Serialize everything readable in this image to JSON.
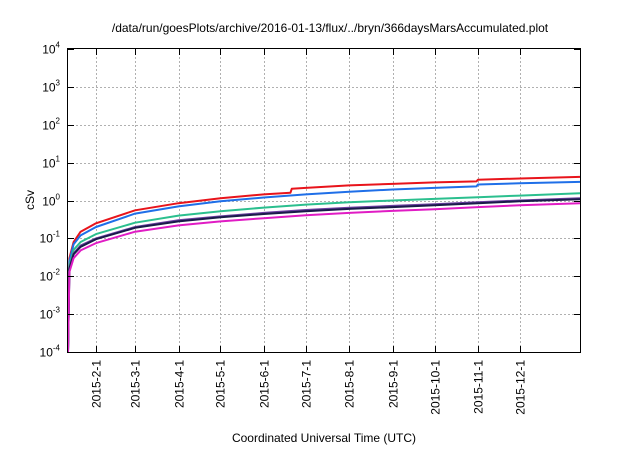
{
  "chart_data": {
    "type": "line",
    "title": "/data/run/goesPlots/archive/2016-01-13/flux/../bryn/366daysMarsAccumulated.plot",
    "xlabel": "Coordinated Universal Time (UTC)",
    "ylabel": "cSv",
    "y_scale": "log",
    "ylim": [
      0.0001,
      10000
    ],
    "xlim": [
      "2015-01-12",
      "2016-01-13"
    ],
    "grid": true,
    "legend": "none",
    "y_ticks": [
      {
        "value": 0.0001,
        "base": "10",
        "exp": "-4"
      },
      {
        "value": 0.001,
        "base": "10",
        "exp": "-3"
      },
      {
        "value": 0.01,
        "base": "10",
        "exp": "-2"
      },
      {
        "value": 0.1,
        "base": "10",
        "exp": "-1"
      },
      {
        "value": 1,
        "base": "10",
        "exp": "0"
      },
      {
        "value": 10,
        "base": "10",
        "exp": "1"
      },
      {
        "value": 100,
        "base": "10",
        "exp": "2"
      },
      {
        "value": 1000,
        "base": "10",
        "exp": "3"
      },
      {
        "value": 10000,
        "base": "10",
        "exp": "4"
      }
    ],
    "x_ticks": [
      {
        "date": "2015-02-01",
        "label": "2015-2-1"
      },
      {
        "date": "2015-03-01",
        "label": "2015-3-1"
      },
      {
        "date": "2015-04-01",
        "label": "2015-4-1"
      },
      {
        "date": "2015-05-01",
        "label": "2015-5-1"
      },
      {
        "date": "2015-06-01",
        "label": "2015-6-1"
      },
      {
        "date": "2015-07-01",
        "label": "2015-7-1"
      },
      {
        "date": "2015-08-01",
        "label": "2015-8-1"
      },
      {
        "date": "2015-09-01",
        "label": "2015-9-1"
      },
      {
        "date": "2015-10-01",
        "label": "2015-10-1"
      },
      {
        "date": "2015-11-01",
        "label": "2015-11-1"
      },
      {
        "date": "2015-12-01",
        "label": "2015-12-1"
      }
    ],
    "series": [
      {
        "color": "#e8141b",
        "points": [
          [
            "2015-01-12",
            0.0001
          ],
          [
            "2015-01-13",
            0.03
          ],
          [
            "2015-01-16",
            0.08
          ],
          [
            "2015-01-21",
            0.15
          ],
          [
            "2015-02-01",
            0.25
          ],
          [
            "2015-03-01",
            0.55
          ],
          [
            "2015-04-01",
            0.85
          ],
          [
            "2015-05-01",
            1.15
          ],
          [
            "2015-06-01",
            1.45
          ],
          [
            "2015-06-20",
            1.6
          ],
          [
            "2015-06-21",
            2.05
          ],
          [
            "2015-07-01",
            2.15
          ],
          [
            "2015-08-01",
            2.5
          ],
          [
            "2015-09-01",
            2.75
          ],
          [
            "2015-10-01",
            3.0
          ],
          [
            "2015-10-31",
            3.2
          ],
          [
            "2015-11-01",
            3.55
          ],
          [
            "2015-12-01",
            3.8
          ],
          [
            "2016-01-13",
            4.2
          ]
        ]
      },
      {
        "color": "#1f6fe8",
        "points": [
          [
            "2015-01-12",
            0.0001
          ],
          [
            "2015-01-13",
            0.025
          ],
          [
            "2015-01-16",
            0.07
          ],
          [
            "2015-01-21",
            0.12
          ],
          [
            "2015-02-01",
            0.2
          ],
          [
            "2015-03-01",
            0.45
          ],
          [
            "2015-04-01",
            0.7
          ],
          [
            "2015-05-01",
            0.95
          ],
          [
            "2015-06-01",
            1.2
          ],
          [
            "2015-07-01",
            1.45
          ],
          [
            "2015-08-01",
            1.7
          ],
          [
            "2015-09-01",
            1.95
          ],
          [
            "2015-10-01",
            2.15
          ],
          [
            "2015-10-31",
            2.35
          ],
          [
            "2015-11-01",
            2.65
          ],
          [
            "2015-12-01",
            2.85
          ],
          [
            "2016-01-13",
            3.1
          ]
        ]
      },
      {
        "color": "#2bbf8e",
        "points": [
          [
            "2015-01-12",
            0.0001
          ],
          [
            "2015-01-13",
            0.02
          ],
          [
            "2015-01-16",
            0.05
          ],
          [
            "2015-01-21",
            0.08
          ],
          [
            "2015-02-01",
            0.13
          ],
          [
            "2015-03-01",
            0.26
          ],
          [
            "2015-04-01",
            0.4
          ],
          [
            "2015-05-01",
            0.52
          ],
          [
            "2015-06-01",
            0.65
          ],
          [
            "2015-07-01",
            0.78
          ],
          [
            "2015-08-01",
            0.9
          ],
          [
            "2015-09-01",
            1.0
          ],
          [
            "2015-10-01",
            1.1
          ],
          [
            "2015-11-01",
            1.22
          ],
          [
            "2015-12-01",
            1.35
          ],
          [
            "2016-01-13",
            1.55
          ]
        ]
      },
      {
        "color": "#6a3fa0",
        "points": [
          [
            "2015-01-12",
            0.0001
          ],
          [
            "2015-01-13",
            0.017
          ],
          [
            "2015-01-16",
            0.04
          ],
          [
            "2015-01-21",
            0.065
          ],
          [
            "2015-02-01",
            0.1
          ],
          [
            "2015-03-01",
            0.2
          ],
          [
            "2015-04-01",
            0.3
          ],
          [
            "2015-05-01",
            0.38
          ],
          [
            "2015-06-01",
            0.47
          ],
          [
            "2015-07-01",
            0.56
          ],
          [
            "2015-08-01",
            0.64
          ],
          [
            "2015-09-01",
            0.72
          ],
          [
            "2015-10-01",
            0.8
          ],
          [
            "2015-11-01",
            0.9
          ],
          [
            "2015-12-01",
            1.0
          ],
          [
            "2016-01-13",
            1.15
          ]
        ]
      },
      {
        "color": "#1a1a4a",
        "points": [
          [
            "2015-01-12",
            0.0001
          ],
          [
            "2015-01-13",
            0.016
          ],
          [
            "2015-01-16",
            0.038
          ],
          [
            "2015-01-21",
            0.06
          ],
          [
            "2015-02-01",
            0.095
          ],
          [
            "2015-03-01",
            0.19
          ],
          [
            "2015-04-01",
            0.28
          ],
          [
            "2015-05-01",
            0.36
          ],
          [
            "2015-06-01",
            0.44
          ],
          [
            "2015-07-01",
            0.52
          ],
          [
            "2015-08-01",
            0.6
          ],
          [
            "2015-09-01",
            0.67
          ],
          [
            "2015-10-01",
            0.75
          ],
          [
            "2015-11-01",
            0.85
          ],
          [
            "2015-12-01",
            0.95
          ],
          [
            "2016-01-13",
            1.08
          ]
        ]
      },
      {
        "color": "#e01cc4",
        "points": [
          [
            "2015-01-12",
            0.0001
          ],
          [
            "2015-01-13",
            0.013
          ],
          [
            "2015-01-16",
            0.03
          ],
          [
            "2015-01-21",
            0.048
          ],
          [
            "2015-02-01",
            0.075
          ],
          [
            "2015-03-01",
            0.15
          ],
          [
            "2015-04-01",
            0.22
          ],
          [
            "2015-05-01",
            0.28
          ],
          [
            "2015-06-01",
            0.34
          ],
          [
            "2015-07-01",
            0.41
          ],
          [
            "2015-08-01",
            0.47
          ],
          [
            "2015-09-01",
            0.53
          ],
          [
            "2015-10-01",
            0.59
          ],
          [
            "2015-11-01",
            0.67
          ],
          [
            "2015-12-01",
            0.75
          ],
          [
            "2016-01-13",
            0.85
          ]
        ]
      }
    ]
  }
}
